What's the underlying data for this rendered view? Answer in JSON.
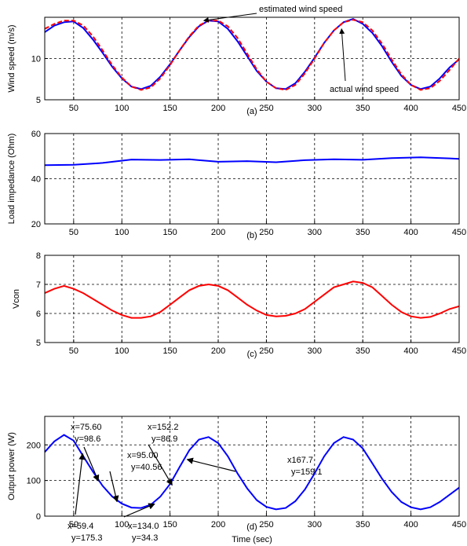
{
  "chart_data": [
    {
      "type": "line",
      "panel_label": "(a)",
      "xlabel": "",
      "ylabel": "Wind speed (m/s)",
      "xlim": [
        20,
        450
      ],
      "ylim": [
        5,
        15
      ],
      "xticks": [
        50,
        100,
        150,
        200,
        250,
        300,
        350,
        400,
        450
      ],
      "yticks": [
        5,
        10
      ],
      "grid": true,
      "series": [
        {
          "color": "#0000ff",
          "style": "solid",
          "x": [
            20,
            30,
            40,
            50,
            60,
            70,
            80,
            90,
            100,
            110,
            120,
            130,
            140,
            150,
            160,
            170,
            180,
            190,
            200,
            210,
            220,
            230,
            240,
            250,
            260,
            270,
            280,
            290,
            300,
            310,
            320,
            330,
            340,
            350,
            360,
            370,
            380,
            390,
            400,
            410,
            420,
            430,
            440,
            450
          ],
          "y": [
            13.2,
            14.0,
            14.4,
            14.5,
            13.7,
            12.3,
            10.7,
            9.0,
            7.6,
            6.6,
            6.3,
            6.7,
            7.8,
            9.3,
            11.0,
            12.6,
            13.9,
            14.6,
            14.5,
            13.6,
            12.1,
            10.3,
            8.5,
            7.2,
            6.4,
            6.3,
            7.0,
            8.4,
            10.1,
            11.9,
            13.4,
            14.4,
            14.8,
            14.2,
            13.1,
            11.5,
            9.6,
            7.9,
            6.8,
            6.3,
            6.6,
            7.6,
            8.9,
            9.9
          ]
        },
        {
          "color": "#ff0000",
          "style": "dashed",
          "x": [
            20,
            30,
            40,
            50,
            60,
            70,
            80,
            90,
            100,
            110,
            120,
            130,
            140,
            150,
            160,
            170,
            180,
            190,
            200,
            210,
            220,
            230,
            240,
            250,
            260,
            270,
            280,
            290,
            300,
            310,
            320,
            330,
            340,
            350,
            360,
            370,
            380,
            390,
            400,
            410,
            420,
            430,
            440,
            450
          ],
          "y": [
            13.6,
            14.2,
            14.6,
            14.6,
            14.0,
            12.7,
            11.0,
            9.2,
            7.7,
            6.6,
            6.2,
            6.5,
            7.6,
            9.2,
            11.0,
            12.7,
            14.0,
            14.6,
            14.6,
            13.9,
            12.5,
            10.6,
            8.7,
            7.2,
            6.4,
            6.2,
            6.8,
            8.2,
            10.0,
            11.9,
            13.4,
            14.4,
            14.7,
            14.4,
            13.4,
            11.8,
            9.9,
            8.1,
            6.8,
            6.2,
            6.4,
            7.3,
            8.6,
            10.0
          ]
        }
      ],
      "annotations": [
        {
          "text": "estimated wind speed",
          "x": 185,
          "y": 14.6
        },
        {
          "text": "actual wind speed",
          "x": 328,
          "y": 13.6
        }
      ]
    },
    {
      "type": "line",
      "panel_label": "(b)",
      "xlabel": "",
      "ylabel": "Load impedance (Ohm)",
      "xlim": [
        20,
        450
      ],
      "ylim": [
        20,
        60
      ],
      "xticks": [
        50,
        100,
        150,
        200,
        250,
        300,
        350,
        400,
        450
      ],
      "yticks": [
        20,
        40,
        60
      ],
      "grid": true,
      "series": [
        {
          "color": "#0000ff",
          "style": "solid",
          "x": [
            20,
            50,
            80,
            110,
            140,
            170,
            200,
            230,
            260,
            290,
            320,
            350,
            380,
            410,
            440,
            450
          ],
          "y": [
            46,
            46.2,
            47,
            48.5,
            48.3,
            48.6,
            47.5,
            47.8,
            47.3,
            48.2,
            48.6,
            48.4,
            49.1,
            49.5,
            49.0,
            48.8
          ]
        }
      ]
    },
    {
      "type": "line",
      "panel_label": "(c)",
      "xlabel": "",
      "ylabel": "Vcon",
      "xlim": [
        20,
        450
      ],
      "ylim": [
        5,
        8
      ],
      "xticks": [
        50,
        100,
        150,
        200,
        250,
        300,
        350,
        400,
        450
      ],
      "yticks": [
        5,
        6,
        7,
        8
      ],
      "grid": true,
      "series": [
        {
          "color": "#ff0000",
          "style": "solid",
          "x": [
            20,
            30,
            40,
            50,
            60,
            70,
            80,
            90,
            100,
            110,
            120,
            130,
            140,
            150,
            160,
            170,
            180,
            190,
            200,
            210,
            220,
            230,
            240,
            250,
            260,
            270,
            280,
            290,
            300,
            310,
            320,
            330,
            340,
            350,
            360,
            370,
            380,
            390,
            400,
            410,
            420,
            430,
            440,
            450
          ],
          "y": [
            6.7,
            6.85,
            6.95,
            6.85,
            6.7,
            6.5,
            6.3,
            6.1,
            5.95,
            5.85,
            5.85,
            5.9,
            6.05,
            6.3,
            6.55,
            6.8,
            6.95,
            7.0,
            6.95,
            6.8,
            6.55,
            6.3,
            6.1,
            5.95,
            5.9,
            5.92,
            6.0,
            6.15,
            6.4,
            6.65,
            6.9,
            7.0,
            7.1,
            7.05,
            6.9,
            6.6,
            6.3,
            6.05,
            5.9,
            5.85,
            5.88,
            6.0,
            6.15,
            6.25
          ]
        }
      ]
    },
    {
      "type": "line",
      "panel_label": "(d)",
      "xlabel": "Time (sec)",
      "ylabel": "Output power (W)",
      "xlim": [
        20,
        450
      ],
      "ylim": [
        0,
        280
      ],
      "xticks": [
        50,
        100,
        150,
        200,
        250,
        300,
        350,
        400,
        450
      ],
      "yticks": [
        0,
        100,
        200
      ],
      "grid": true,
      "series": [
        {
          "color": "#0000ff",
          "style": "solid",
          "x": [
            20,
            30,
            40,
            50,
            60,
            70,
            80,
            90,
            100,
            110,
            120,
            130,
            140,
            150,
            160,
            170,
            180,
            190,
            200,
            210,
            220,
            230,
            240,
            250,
            260,
            270,
            280,
            290,
            300,
            310,
            320,
            330,
            340,
            350,
            360,
            370,
            380,
            390,
            400,
            410,
            420,
            430,
            440,
            450
          ],
          "y": [
            180,
            210,
            228,
            212,
            168,
            125,
            85,
            55,
            35,
            24,
            23,
            32,
            55,
            90,
            138,
            185,
            215,
            222,
            205,
            168,
            120,
            78,
            45,
            26,
            19,
            23,
            42,
            75,
            120,
            168,
            205,
            222,
            215,
            190,
            148,
            105,
            68,
            40,
            25,
            19,
            25,
            40,
            60,
            80
          ]
        }
      ],
      "annotations": [
        {
          "text_x": "x=75.60",
          "text_y": "y=98.6",
          "x": 75.6,
          "y": 98.6
        },
        {
          "text_x": "x=95.00",
          "text_y": "y=40.56",
          "x": 95.0,
          "y": 40.56
        },
        {
          "text_x": "x=152.2",
          "text_y": "y=86.9",
          "x": 152.2,
          "y": 86.9
        },
        {
          "text_x": "x167.7",
          "text_y": "y=159.1",
          "x": 167.7,
          "y": 159.1
        },
        {
          "text_x": "x=59.4",
          "text_y": "y=175.3",
          "x": 59.4,
          "y": 175.3
        },
        {
          "text_x": "x=134.0",
          "text_y": "y=34.3",
          "x": 134.0,
          "y": 34.3
        }
      ]
    }
  ]
}
